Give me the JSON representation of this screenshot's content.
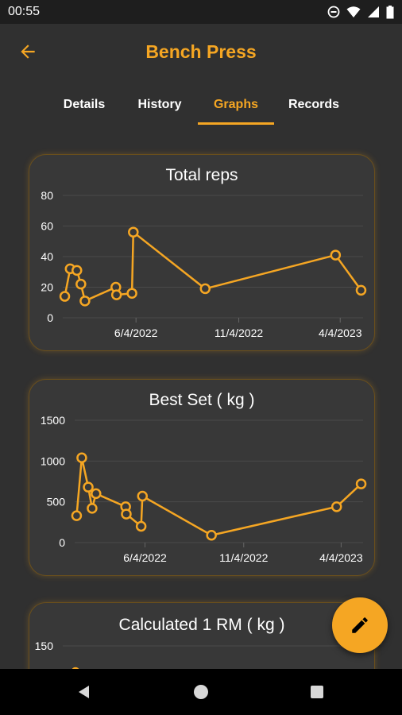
{
  "status": {
    "time": "00:55"
  },
  "app": {
    "title": "Bench Press"
  },
  "tabs": [
    {
      "label": "Details"
    },
    {
      "label": "History"
    },
    {
      "label": "Graphs"
    },
    {
      "label": "Records"
    }
  ],
  "colors": {
    "accent": "#f5a623",
    "background": "#303030",
    "card": "#383838"
  },
  "chart_data": [
    {
      "type": "line",
      "title": "Total reps",
      "xlabel": "",
      "ylabel": "",
      "ylim": [
        0,
        80
      ],
      "yticks": [
        "0",
        "20",
        "40",
        "60",
        "80"
      ],
      "xticks": [
        "6/4/2022",
        "11/4/2022",
        "4/4/2023"
      ],
      "points": [
        [
          "2022-02-18",
          14
        ],
        [
          "2022-02-26",
          32
        ],
        [
          "2022-03-08",
          31
        ],
        [
          "2022-03-14",
          22
        ],
        [
          "2022-03-20",
          11
        ],
        [
          "2022-05-05",
          20
        ],
        [
          "2022-05-06",
          15
        ],
        [
          "2022-05-29",
          16
        ],
        [
          "2022-05-31",
          56
        ],
        [
          "2022-09-15",
          19
        ],
        [
          "2023-03-28",
          41
        ],
        [
          "2023-05-05",
          18
        ]
      ]
    },
    {
      "type": "line",
      "title": "Best Set ( kg )",
      "xlabel": "",
      "ylabel": "",
      "ylim": [
        0,
        1500
      ],
      "yticks": [
        "0",
        "500",
        "1000",
        "1500"
      ],
      "xticks": [
        "6/4/2022",
        "11/4/2022",
        "4/4/2023"
      ],
      "points": [
        [
          "2022-02-18",
          330
        ],
        [
          "2022-02-26",
          1040
        ],
        [
          "2022-03-08",
          680
        ],
        [
          "2022-03-14",
          420
        ],
        [
          "2022-03-20",
          600
        ],
        [
          "2022-05-05",
          440
        ],
        [
          "2022-05-06",
          350
        ],
        [
          "2022-05-29",
          200
        ],
        [
          "2022-05-31",
          570
        ],
        [
          "2022-09-15",
          90
        ],
        [
          "2023-03-28",
          440
        ],
        [
          "2023-05-05",
          720
        ]
      ]
    },
    {
      "type": "line",
      "title": "Calculated 1 RM ( kg )",
      "xlabel": "",
      "ylabel": "",
      "ylim": [
        0,
        150
      ],
      "yticks": [
        "150"
      ],
      "xticks": [],
      "points": []
    }
  ],
  "icons": {
    "back": "arrow-left-icon",
    "fab": "pencil-icon",
    "nav_back": "triangle-back-icon",
    "nav_home": "circle-home-icon",
    "nav_recents": "square-recents-icon"
  }
}
